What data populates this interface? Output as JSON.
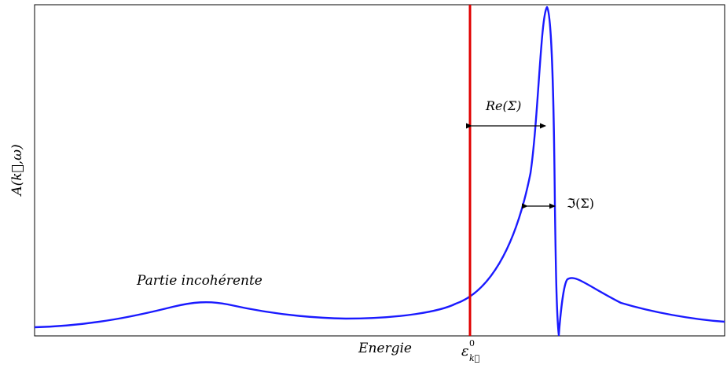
{
  "labels": {
    "y_axis": "A(k⃗,ω)",
    "x_axis": "Energie",
    "x_marker": "ε",
    "x_marker_sup": "0",
    "x_marker_sub": "k⃗",
    "incoherent": "Partie incohérente",
    "re_sigma": "Re(Σ)",
    "im_sigma": "ℑ(Σ)"
  },
  "colors": {
    "curve": "#1a1aff",
    "marker_line": "#e00000",
    "axes": "#000000",
    "arrows": "#000000"
  }
}
